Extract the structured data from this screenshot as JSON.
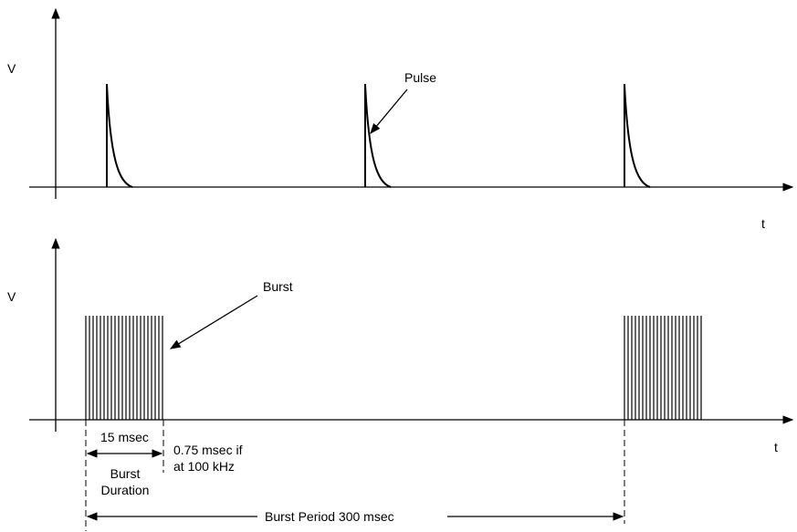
{
  "top_panel": {
    "y_axis_label": "V",
    "x_axis_label": "t",
    "callout": "Pulse"
  },
  "bottom_panel": {
    "y_axis_label": "V",
    "x_axis_label": "t",
    "callout": "Burst",
    "dimension_15": "15 msec",
    "note_line1": "0.75 msec if",
    "note_line2": "at 100 kHz",
    "burst_duration_line1": "Burst",
    "burst_duration_line2": "Duration",
    "burst_period": "Burst Period 300 msec"
  },
  "colors": {
    "ink": "#000000",
    "background": "#ffffff"
  }
}
